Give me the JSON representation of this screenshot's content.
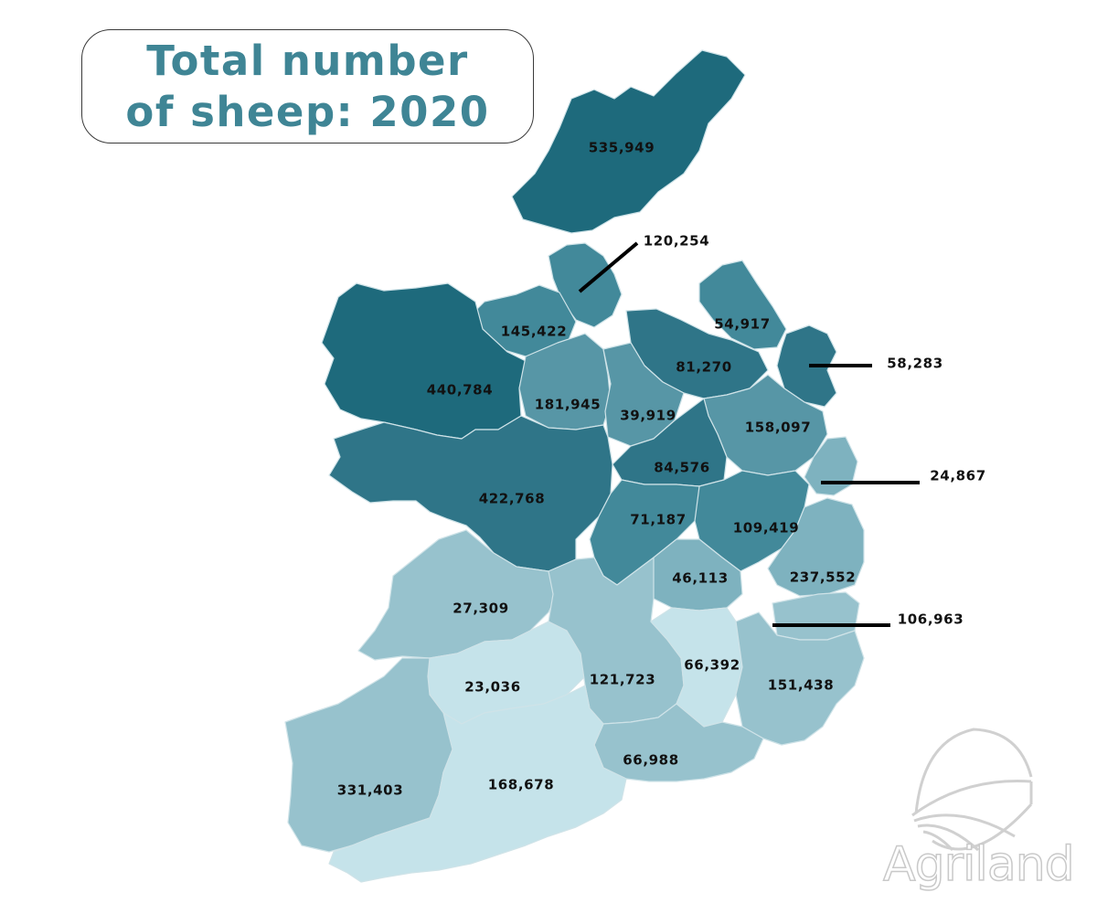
{
  "title": "Total number of sheep: 2020",
  "brand": "Agriland",
  "colors": {
    "title": "#3f8595",
    "shade_1": "#1e6a7c",
    "shade_2": "#2f7588",
    "shade_3": "#42899a",
    "shade_4": "#5796a6",
    "shade_5": "#7eb2bf",
    "shade_6": "#97c2cd",
    "shade_7": "#c5e3ea"
  },
  "regions": [
    {
      "value": "535,949",
      "shade": "shade_1"
    },
    {
      "value": "120,254",
      "shade": "shade_3"
    },
    {
      "value": "145,422",
      "shade": "shade_3"
    },
    {
      "value": "54,917",
      "shade": "shade_3"
    },
    {
      "value": "58,283",
      "shade": "shade_2"
    },
    {
      "value": "440,784",
      "shade": "shade_1"
    },
    {
      "value": "81,270",
      "shade": "shade_2"
    },
    {
      "value": "181,945",
      "shade": "shade_4"
    },
    {
      "value": "39,919",
      "shade": "shade_4"
    },
    {
      "value": "158,097",
      "shade": "shade_4"
    },
    {
      "value": "84,576",
      "shade": "shade_2"
    },
    {
      "value": "24,867",
      "shade": "shade_5"
    },
    {
      "value": "422,768",
      "shade": "shade_2"
    },
    {
      "value": "71,187",
      "shade": "shade_3"
    },
    {
      "value": "109,419",
      "shade": "shade_3"
    },
    {
      "value": "46,113",
      "shade": "shade_5"
    },
    {
      "value": "237,552",
      "shade": "shade_5"
    },
    {
      "value": "27,309",
      "shade": "shade_6"
    },
    {
      "value": "106,963",
      "shade": "shade_6"
    },
    {
      "value": "23,036",
      "shade": "shade_7"
    },
    {
      "value": "121,723",
      "shade": "shade_6"
    },
    {
      "value": "66,392",
      "shade": "shade_7"
    },
    {
      "value": "151,438",
      "shade": "shade_6"
    },
    {
      "value": "66,988",
      "shade": "shade_6"
    },
    {
      "value": "331,403",
      "shade": "shade_6"
    },
    {
      "value": "168,678",
      "shade": "shade_7"
    }
  ]
}
